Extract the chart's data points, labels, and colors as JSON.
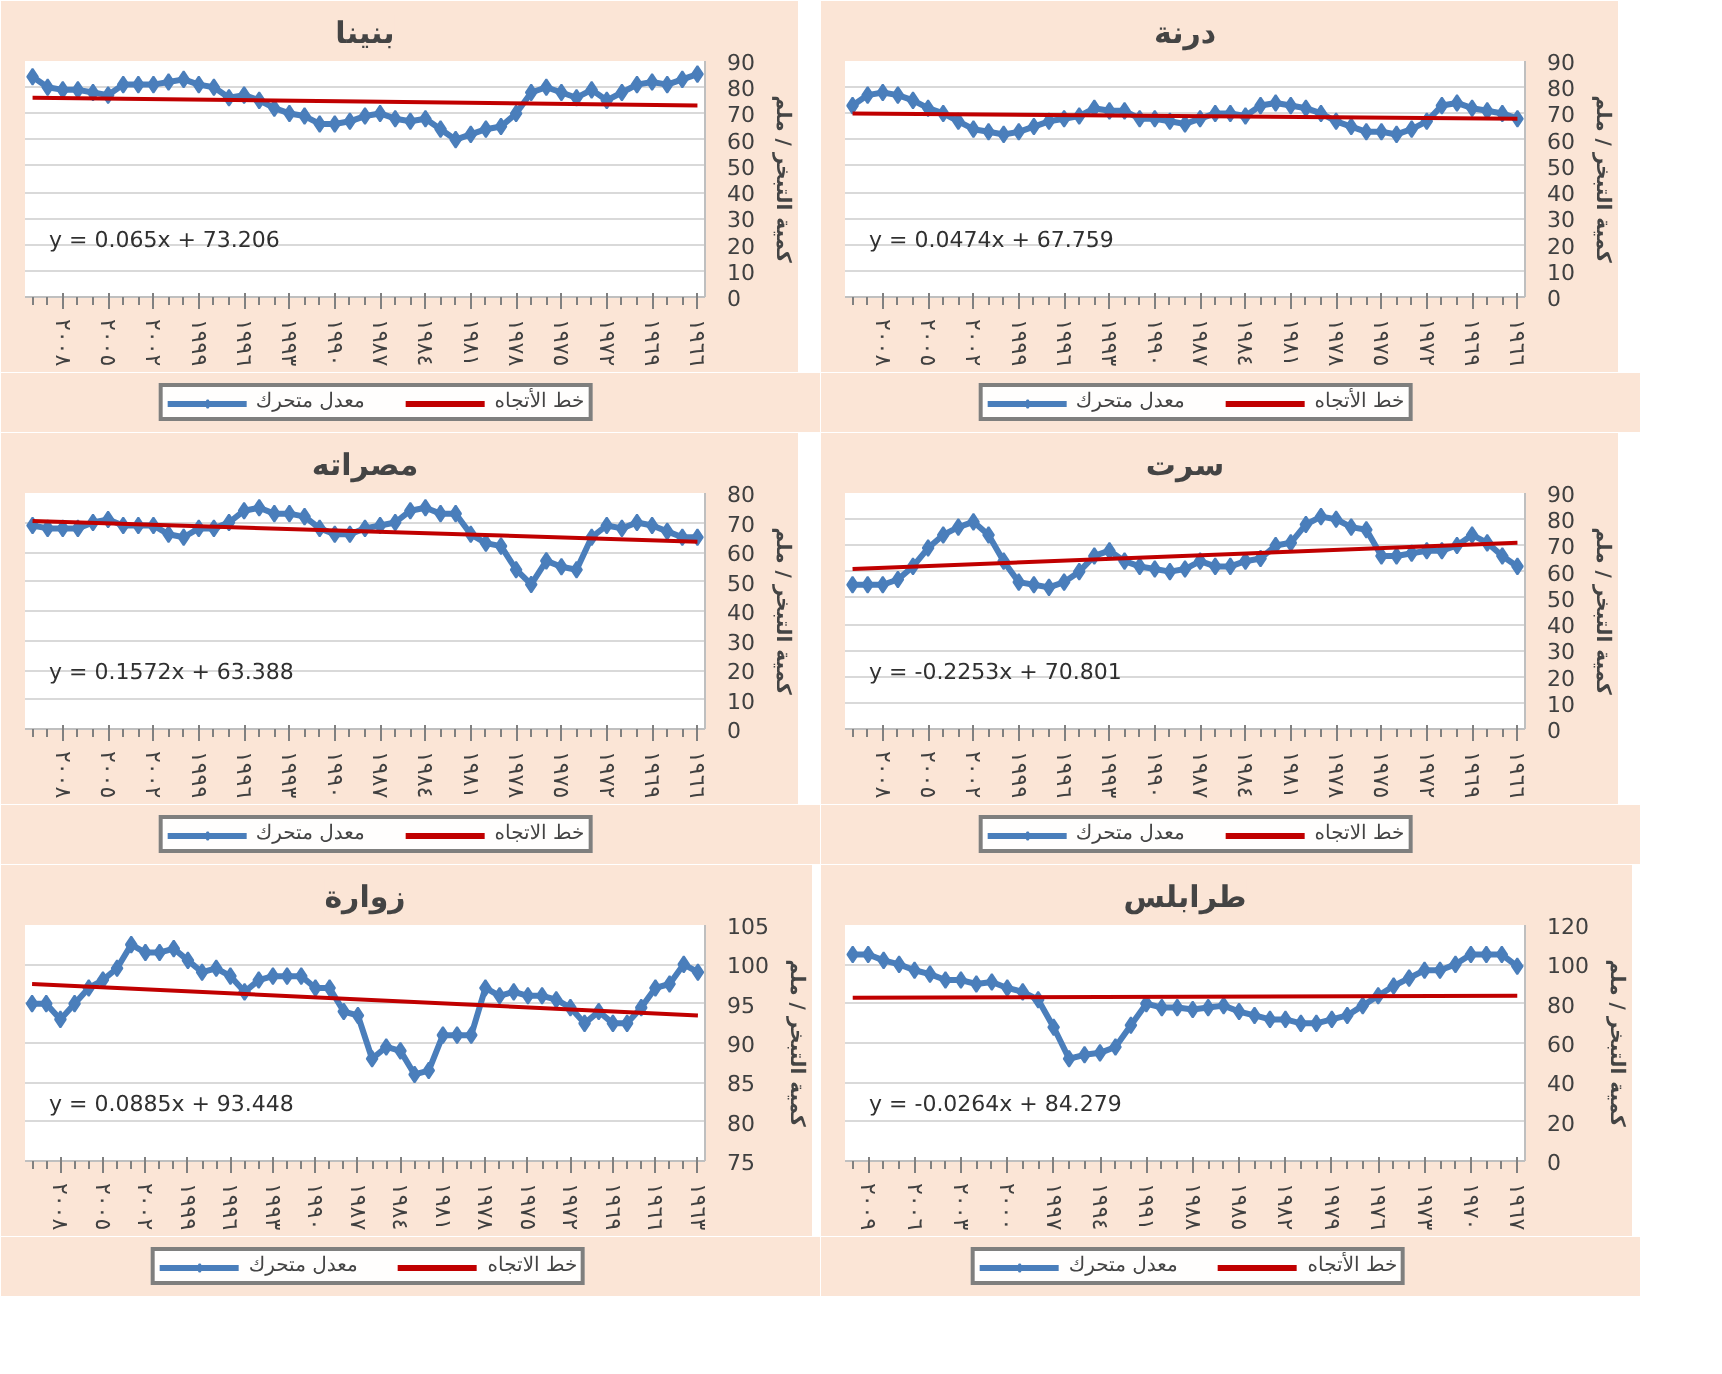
{
  "chart_data": [
    {
      "type": "line",
      "title": "بنينا",
      "ylabel": "كمية التبخر / ملم",
      "x": [
        2010,
        2009,
        2008,
        2007,
        2006,
        2005,
        2004,
        2003,
        2002,
        2001,
        2000,
        1999,
        1998,
        1997,
        1996,
        1995,
        1994,
        1993,
        1992,
        1991,
        1990,
        1989,
        1988,
        1987,
        1986,
        1985,
        1984,
        1983,
        1982,
        1981,
        1980,
        1979,
        1978,
        1977,
        1976,
        1975,
        1974,
        1973,
        1972,
        1971,
        1970,
        1969,
        1968,
        1967,
        1966
      ],
      "xlim": [
        2010.5,
        1965.5
      ],
      "xticks": [
        {
          "value": 2008,
          "label": "٢٠٠٨"
        },
        {
          "value": 2005,
          "label": "٢٠٠٥"
        },
        {
          "value": 2002,
          "label": "٢٠٠٢"
        },
        {
          "value": 1999,
          "label": "١٩٩٩"
        },
        {
          "value": 1996,
          "label": "١٩٩٦"
        },
        {
          "value": 1993,
          "label": "١٩٩٣"
        },
        {
          "value": 1990,
          "label": "١٩٩٠"
        },
        {
          "value": 1987,
          "label": "١٩٨٧"
        },
        {
          "value": 1984,
          "label": "١٩٨٤"
        },
        {
          "value": 1981,
          "label": "١٩٨١"
        },
        {
          "value": 1978,
          "label": "١٩٧٨"
        },
        {
          "value": 1975,
          "label": "١٩٧٥"
        },
        {
          "value": 1972,
          "label": "١٩٧٢"
        },
        {
          "value": 1969,
          "label": "١٩٦٩"
        },
        {
          "value": 1966,
          "label": "١٩٦٦"
        }
      ],
      "ylim": [
        0,
        90
      ],
      "yticks": [
        0,
        10,
        20,
        30,
        40,
        50,
        60,
        70,
        80,
        90
      ],
      "grid": "y",
      "legend": "bottom",
      "marker": "diamond",
      "annotations": [
        "y = 0.065x + 73.206"
      ],
      "series": [
        {
          "name": "معدل متحرك",
          "color": "#4a7ebb",
          "values": [
            84,
            80,
            79,
            79,
            78,
            77,
            81,
            81,
            81,
            82,
            83,
            81,
            80,
            76,
            77,
            75,
            72,
            70,
            69,
            66,
            66,
            67,
            69,
            70,
            68,
            67,
            68,
            64,
            60,
            62,
            64,
            65,
            70,
            78,
            80,
            78,
            76,
            79,
            75,
            78,
            81,
            82,
            81,
            83,
            85
          ]
        },
        {
          "name": "خط الأتجاه",
          "type": "line",
          "color": "#c00000",
          "marker": "none",
          "x": [
            2010,
            1966
          ],
          "values": [
            76,
            73
          ]
        }
      ]
    },
    {
      "type": "line",
      "title": "درنة",
      "ylabel": "كمية التبخر / ملم",
      "x": [
        2010,
        2009,
        2008,
        2007,
        2006,
        2005,
        2004,
        2003,
        2002,
        2001,
        2000,
        1999,
        1998,
        1997,
        1996,
        1995,
        1994,
        1993,
        1992,
        1991,
        1990,
        1989,
        1988,
        1987,
        1986,
        1985,
        1984,
        1983,
        1982,
        1981,
        1980,
        1979,
        1978,
        1977,
        1976,
        1975,
        1974,
        1973,
        1972,
        1971,
        1970,
        1969,
        1968,
        1967,
        1966
      ],
      "xlim": [
        2010.5,
        1965.5
      ],
      "xticks": [
        {
          "value": 2008,
          "label": "٢٠٠٨"
        },
        {
          "value": 2005,
          "label": "٢٠٠٥"
        },
        {
          "value": 2002,
          "label": "٢٠٠٢"
        },
        {
          "value": 1999,
          "label": "١٩٩٩"
        },
        {
          "value": 1996,
          "label": "١٩٩٦"
        },
        {
          "value": 1993,
          "label": "١٩٩٣"
        },
        {
          "value": 1990,
          "label": "١٩٩٠"
        },
        {
          "value": 1987,
          "label": "١٩٨٧"
        },
        {
          "value": 1984,
          "label": "١٩٨٤"
        },
        {
          "value": 1981,
          "label": "١٩٨١"
        },
        {
          "value": 1978,
          "label": "١٩٧٨"
        },
        {
          "value": 1975,
          "label": "١٩٧٥"
        },
        {
          "value": 1972,
          "label": "١٩٧٢"
        },
        {
          "value": 1969,
          "label": "١٩٦٩"
        },
        {
          "value": 1966,
          "label": "١٩٦٦"
        }
      ],
      "ylim": [
        0,
        90
      ],
      "yticks": [
        0,
        10,
        20,
        30,
        40,
        50,
        60,
        70,
        80,
        90
      ],
      "grid": "y",
      "legend": "bottom",
      "marker": "diamond",
      "annotations": [
        "y = 0.0474x + 67.759"
      ],
      "series": [
        {
          "name": "معدل متحرك",
          "color": "#4a7ebb",
          "values": [
            73,
            77,
            78,
            77,
            75,
            72,
            70,
            67,
            64,
            63,
            62,
            63,
            65,
            67,
            68,
            69,
            72,
            71,
            71,
            68,
            68,
            67,
            66,
            68,
            70,
            70,
            69,
            73,
            74,
            73,
            72,
            70,
            67,
            65,
            63,
            63,
            62,
            64,
            67,
            73,
            74,
            72,
            71,
            70,
            68
          ]
        },
        {
          "name": "خط الأتجاه",
          "type": "line",
          "color": "#c00000",
          "marker": "none",
          "x": [
            2010,
            1966
          ],
          "values": [
            70,
            68
          ]
        }
      ]
    },
    {
      "type": "line",
      "title": "مصراته",
      "ylabel": "كمية التبخر / ملم",
      "x": [
        2010,
        2009,
        2008,
        2007,
        2006,
        2005,
        2004,
        2003,
        2002,
        2001,
        2000,
        1999,
        1998,
        1997,
        1996,
        1995,
        1994,
        1993,
        1992,
        1991,
        1990,
        1989,
        1988,
        1987,
        1986,
        1985,
        1984,
        1983,
        1982,
        1981,
        1980,
        1979,
        1978,
        1977,
        1976,
        1975,
        1974,
        1973,
        1972,
        1971,
        1970,
        1969,
        1968,
        1967,
        1966
      ],
      "xlim": [
        2010.5,
        1965.5
      ],
      "xticks": [
        {
          "value": 2008,
          "label": "٢٠٠٨"
        },
        {
          "value": 2005,
          "label": "٢٠٠٥"
        },
        {
          "value": 2002,
          "label": "٢٠٠٢"
        },
        {
          "value": 1999,
          "label": "١٩٩٩"
        },
        {
          "value": 1996,
          "label": "١٩٩٦"
        },
        {
          "value": 1993,
          "label": "١٩٩٣"
        },
        {
          "value": 1990,
          "label": "١٩٩٠"
        },
        {
          "value": 1987,
          "label": "١٩٨٧"
        },
        {
          "value": 1984,
          "label": "١٩٨٤"
        },
        {
          "value": 1981,
          "label": "١٩٨١"
        },
        {
          "value": 1978,
          "label": "١٩٧٨"
        },
        {
          "value": 1975,
          "label": "١٩٧٥"
        },
        {
          "value": 1972,
          "label": "١٩٧٢"
        },
        {
          "value": 1969,
          "label": "١٩٦٩"
        },
        {
          "value": 1966,
          "label": "١٩٦٦"
        }
      ],
      "ylim": [
        0,
        80
      ],
      "yticks": [
        0,
        10,
        20,
        30,
        40,
        50,
        60,
        70,
        80
      ],
      "grid": "y",
      "legend": "bottom",
      "marker": "diamond",
      "annotations": [
        "y = 0.1572x + 63.388"
      ],
      "series": [
        {
          "name": "معدل متحرك",
          "color": "#4a7ebb",
          "values": [
            69,
            68,
            68,
            68,
            70,
            71,
            69,
            69,
            69,
            66,
            65,
            68,
            68,
            70,
            74,
            75,
            73,
            73,
            72,
            68,
            66,
            66,
            68,
            69,
            70,
            74,
            75,
            73,
            73,
            66,
            63,
            62,
            54,
            49,
            57,
            55,
            54,
            65,
            69,
            68,
            70,
            69,
            67,
            65,
            65
          ]
        },
        {
          "name": "خط الاتجاه",
          "type": "line",
          "color": "#c00000",
          "marker": "none",
          "x": [
            2010,
            1966
          ],
          "values": [
            70.5,
            63.5
          ]
        }
      ]
    },
    {
      "type": "line",
      "title": "سرت",
      "ylabel": "كمية التبخر / ملم",
      "x": [
        2010,
        2009,
        2008,
        2007,
        2006,
        2005,
        2004,
        2003,
        2002,
        2001,
        2000,
        1999,
        1998,
        1997,
        1996,
        1995,
        1994,
        1993,
        1992,
        1991,
        1990,
        1989,
        1988,
        1987,
        1986,
        1985,
        1984,
        1983,
        1982,
        1981,
        1980,
        1979,
        1978,
        1977,
        1976,
        1975,
        1974,
        1973,
        1972,
        1971,
        1970,
        1969,
        1968,
        1967,
        1966
      ],
      "xlim": [
        2010.5,
        1965.5
      ],
      "xticks": [
        {
          "value": 2008,
          "label": "٢٠٠٨"
        },
        {
          "value": 2005,
          "label": "٢٠٠٥"
        },
        {
          "value": 2002,
          "label": "٢٠٠٢"
        },
        {
          "value": 1999,
          "label": "١٩٩٩"
        },
        {
          "value": 1996,
          "label": "١٩٩٦"
        },
        {
          "value": 1993,
          "label": "١٩٩٣"
        },
        {
          "value": 1990,
          "label": "١٩٩٠"
        },
        {
          "value": 1987,
          "label": "١٩٨٧"
        },
        {
          "value": 1984,
          "label": "١٩٨٤"
        },
        {
          "value": 1981,
          "label": "١٩٨١"
        },
        {
          "value": 1978,
          "label": "١٩٧٨"
        },
        {
          "value": 1975,
          "label": "١٩٧٥"
        },
        {
          "value": 1972,
          "label": "١٩٧٢"
        },
        {
          "value": 1969,
          "label": "١٩٦٩"
        },
        {
          "value": 1966,
          "label": "١٩٦٦"
        }
      ],
      "ylim": [
        0,
        90
      ],
      "yticks": [
        0,
        10,
        20,
        30,
        40,
        50,
        60,
        70,
        80,
        90
      ],
      "grid": "y",
      "legend": "bottom",
      "marker": "diamond",
      "annotations": [
        "y = -0.2253x + 70.801"
      ],
      "series": [
        {
          "name": "معدل متحرك",
          "color": "#4a7ebb",
          "values": [
            55,
            55,
            55,
            57,
            62,
            69,
            74,
            77,
            79,
            74,
            64,
            56,
            55,
            54,
            56,
            60,
            66,
            68,
            64,
            62,
            61,
            60,
            61,
            64,
            62,
            62,
            64,
            65,
            70,
            71,
            78,
            81,
            80,
            77,
            76,
            66,
            66,
            67,
            68,
            68,
            70,
            74,
            71,
            66,
            62
          ]
        },
        {
          "name": "خط الاتجاه",
          "type": "line",
          "color": "#c00000",
          "marker": "none",
          "x": [
            2010,
            1966
          ],
          "values": [
            61,
            71
          ]
        }
      ]
    },
    {
      "type": "line",
      "title": "زوارة",
      "ylabel": "كمية التبخر / ملم",
      "x": [
        2010,
        2009,
        2008,
        2007,
        2006,
        2005,
        2004,
        2003,
        2002,
        2001,
        2000,
        1999,
        1998,
        1997,
        1996,
        1995,
        1994,
        1993,
        1992,
        1991,
        1990,
        1989,
        1988,
        1987,
        1986,
        1985,
        1984,
        1983,
        1982,
        1981,
        1980,
        1979,
        1978,
        1977,
        1976,
        1975,
        1974,
        1973,
        1972,
        1971,
        1970,
        1969,
        1968,
        1967,
        1966,
        1965,
        1964,
        1963
      ],
      "xlim": [
        2010.5,
        1962.5
      ],
      "xticks": [
        {
          "value": 2008,
          "label": "٢٠٠٨"
        },
        {
          "value": 2005,
          "label": "٢٠٠٥"
        },
        {
          "value": 2002,
          "label": "٢٠٠٢"
        },
        {
          "value": 1999,
          "label": "١٩٩٩"
        },
        {
          "value": 1996,
          "label": "١٩٩٦"
        },
        {
          "value": 1993,
          "label": "١٩٩٣"
        },
        {
          "value": 1990,
          "label": "١٩٩٠"
        },
        {
          "value": 1987,
          "label": "١٩٨٧"
        },
        {
          "value": 1984,
          "label": "١٩٨٤"
        },
        {
          "value": 1981,
          "label": "١٩٨١"
        },
        {
          "value": 1978,
          "label": "١٩٧٨"
        },
        {
          "value": 1975,
          "label": "١٩٧٥"
        },
        {
          "value": 1972,
          "label": "١٩٧٢"
        },
        {
          "value": 1969,
          "label": "١٩٦٩"
        },
        {
          "value": 1966,
          "label": "١٩٦٦"
        },
        {
          "value": 1963,
          "label": "١٩٦٣"
        }
      ],
      "ylim": [
        75,
        105
      ],
      "yticks": [
        75,
        80,
        85,
        90,
        95,
        100,
        105
      ],
      "grid": "y",
      "legend": "bottom",
      "marker": "diamond",
      "annotations": [
        "y = 0.0885x + 93.448"
      ],
      "series": [
        {
          "name": "معدل متحرك",
          "color": "#4a7ebb",
          "values": [
            95,
            95,
            93,
            95,
            97,
            98,
            99.5,
            102.5,
            101.5,
            101.5,
            102,
            100.5,
            99,
            99.5,
            98.5,
            96.5,
            98,
            98.5,
            98.5,
            98.5,
            97,
            97,
            94,
            93.5,
            88,
            89.5,
            89,
            86,
            86.5,
            91,
            91,
            91,
            97,
            96,
            96.5,
            96,
            96,
            95.5,
            94.5,
            92.5,
            94,
            92.5,
            92.5,
            94.5,
            97,
            97.5,
            100,
            99
          ]
        },
        {
          "name": "خط الاتجاه",
          "type": "line",
          "color": "#c00000",
          "marker": "none",
          "x": [
            2010,
            1963
          ],
          "values": [
            97.5,
            93.5
          ]
        }
      ]
    },
    {
      "type": "line",
      "title": "طرابلس",
      "ylabel": "كمية التبخر / ملم",
      "x": [
        2010,
        2009,
        2008,
        2007,
        2006,
        2005,
        2004,
        2003,
        2002,
        2001,
        2000,
        1999,
        1998,
        1997,
        1996,
        1995,
        1994,
        1993,
        1992,
        1991,
        1990,
        1989,
        1988,
        1987,
        1986,
        1985,
        1984,
        1983,
        1982,
        1981,
        1980,
        1979,
        1978,
        1977,
        1976,
        1975,
        1974,
        1973,
        1972,
        1971,
        1970,
        1969,
        1968,
        1967
      ],
      "xlim": [
        2010.5,
        1966.5
      ],
      "xticks": [
        {
          "value": 2009,
          "label": "٢٠٠٩"
        },
        {
          "value": 2006,
          "label": "٢٠٠٦"
        },
        {
          "value": 2003,
          "label": "٢٠٠٣"
        },
        {
          "value": 2000,
          "label": "٢٠٠٠"
        },
        {
          "value": 1997,
          "label": "١٩٩٧"
        },
        {
          "value": 1994,
          "label": "١٩٩٤"
        },
        {
          "value": 1991,
          "label": "١٩٩١"
        },
        {
          "value": 1988,
          "label": "١٩٨٨"
        },
        {
          "value": 1985,
          "label": "١٩٨٥"
        },
        {
          "value": 1982,
          "label": "١٩٨٢"
        },
        {
          "value": 1979,
          "label": "١٩٧٩"
        },
        {
          "value": 1976,
          "label": "١٩٧٦"
        },
        {
          "value": 1973,
          "label": "١٩٧٣"
        },
        {
          "value": 1970,
          "label": "١٩٧٠"
        },
        {
          "value": 1967,
          "label": "١٩٦٧"
        }
      ],
      "ylim": [
        0,
        120
      ],
      "yticks": [
        0,
        20,
        40,
        60,
        80,
        100,
        120
      ],
      "grid": "y",
      "legend": "bottom",
      "marker": "diamond",
      "annotations": [
        "y = -0.0264x + 84.279"
      ],
      "series": [
        {
          "name": "معدل متحرك",
          "color": "#4a7ebb",
          "values": [
            105,
            105,
            102,
            100,
            97,
            95,
            92,
            92,
            90,
            91,
            88,
            86,
            82,
            68,
            52,
            54,
            55,
            58,
            69,
            80,
            78,
            78,
            77,
            78,
            79,
            76,
            74,
            72,
            72,
            70,
            70,
            72,
            74,
            79,
            84,
            89,
            93,
            97,
            97,
            100,
            105,
            105,
            105,
            99
          ]
        },
        {
          "name": "خط الأتجاه",
          "type": "line",
          "color": "#c00000",
          "marker": "none",
          "x": [
            2010,
            1967
          ],
          "values": [
            83,
            84
          ]
        }
      ]
    }
  ]
}
